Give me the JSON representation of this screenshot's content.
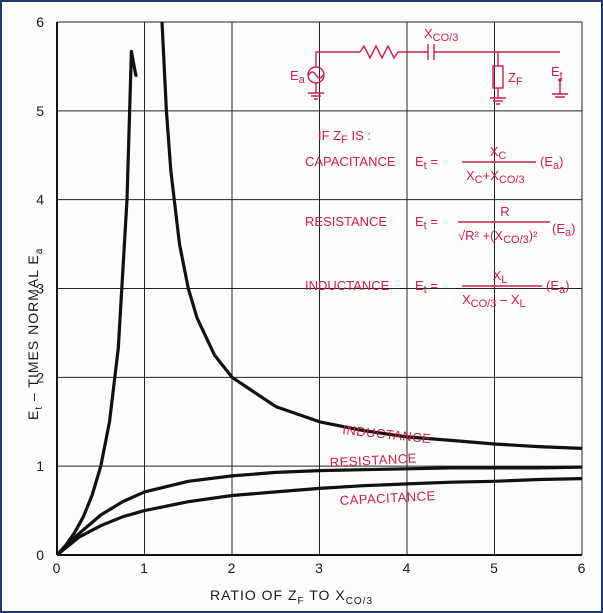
{
  "chart_data": {
    "type": "line",
    "title": "",
    "xlabel": "RATIO  OF  Z",
    "xlabel_sub": "F",
    "xlabel_tail": "  TO  X",
    "xlabel_tail_sub": "CO/3",
    "ylabel": "E",
    "ylabel_sub": "t",
    "ylabel_tail": " – TIMES  NORMAL  E",
    "ylabel_tail_sub": "a",
    "xlim": [
      0,
      6
    ],
    "ylim": [
      0,
      6
    ],
    "xticks": [
      "0",
      "1",
      "2",
      "3",
      "4",
      "5",
      "6"
    ],
    "yticks": [
      "0",
      "1",
      "2",
      "3",
      "4",
      "5",
      "6"
    ],
    "grid": true,
    "series": [
      {
        "name": "INDUCTANCE",
        "branches": [
          {
            "x": [
              0,
              0.1,
              0.2,
              0.3,
              0.4,
              0.5,
              0.6,
              0.7,
              0.8,
              0.85,
              0.9,
              0.92
            ],
            "y": [
              0,
              0.11,
              0.25,
              0.43,
              0.67,
              1.0,
              1.5,
              2.33,
              4.0,
              5.67,
              5.4,
              5.4
            ]
          },
          {
            "x": [
              1.2,
              1.25,
              1.3,
              1.4,
              1.5,
              1.6,
              1.8,
              2.0,
              2.5,
              3.0,
              3.5,
              4.0,
              4.5,
              5.0,
              5.5,
              6.0
            ],
            "y": [
              6.0,
              5.0,
              4.33,
              3.5,
              3.0,
              2.67,
              2.25,
              2.0,
              1.67,
              1.5,
              1.4,
              1.33,
              1.29,
              1.25,
              1.22,
              1.2
            ]
          }
        ]
      },
      {
        "name": "RESISTANCE",
        "x": [
          0,
          0.25,
          0.5,
          0.75,
          1.0,
          1.5,
          2.0,
          2.5,
          3.0,
          3.5,
          4.0,
          4.5,
          5.0,
          5.5,
          6.0
        ],
        "y": [
          0,
          0.24,
          0.45,
          0.6,
          0.71,
          0.83,
          0.89,
          0.93,
          0.95,
          0.96,
          0.97,
          0.98,
          0.98,
          0.98,
          0.99
        ]
      },
      {
        "name": "CAPACITANCE",
        "x": [
          0,
          0.25,
          0.5,
          0.75,
          1.0,
          1.5,
          2.0,
          2.5,
          3.0,
          3.5,
          4.0,
          4.5,
          5.0,
          5.5,
          6.0
        ],
        "y": [
          0,
          0.2,
          0.33,
          0.43,
          0.5,
          0.6,
          0.67,
          0.71,
          0.75,
          0.78,
          0.8,
          0.82,
          0.83,
          0.85,
          0.86
        ]
      }
    ],
    "curve_labels": [
      "INDUCTANCE",
      "RESISTANCE",
      "CAPACITANCE"
    ]
  },
  "inset": {
    "source_label": "E",
    "source_label_sub": "a",
    "cap_label": "X",
    "cap_label_sub": "CO/3",
    "load_label": "Z",
    "load_label_sub": "F",
    "output_label": "E",
    "output_label_sub": "t",
    "intro": "IF  Z",
    "intro_sub": "F",
    "intro_tail": " IS :",
    "cases": [
      {
        "name": "CAPACITANCE",
        "lhs": "E",
        "lhs_sub": "t",
        "numerator": "X",
        "numerator_sub": "C",
        "denominator": "X",
        "denominator_sub": "C",
        "denominator_tail": "+X",
        "denominator_tail_sub": "CO/3",
        "factor": "(E",
        "factor_sub": "a",
        "factor_end": ")"
      },
      {
        "name": "RESISTANCE",
        "lhs": "E",
        "lhs_sub": "t",
        "numerator": "R",
        "denominator": "√R² +(X",
        "denominator_sub": "CO/3",
        "denominator_tail": ")²",
        "factor": "(E",
        "factor_sub": "a",
        "factor_end": ")"
      },
      {
        "name": "INDUCTANCE",
        "lhs": "E",
        "lhs_sub": "t",
        "numerator": "X",
        "numerator_sub": "L",
        "denominator": "X",
        "denominator_sub": "CO/3",
        "denominator_tail": " – X",
        "denominator_tail_sub": "L",
        "factor": "(E",
        "factor_sub": "a",
        "factor_end": ")"
      }
    ]
  },
  "colors": {
    "curve": "#111111",
    "annotation": "#cc1f4a",
    "frame": "#20386e"
  }
}
